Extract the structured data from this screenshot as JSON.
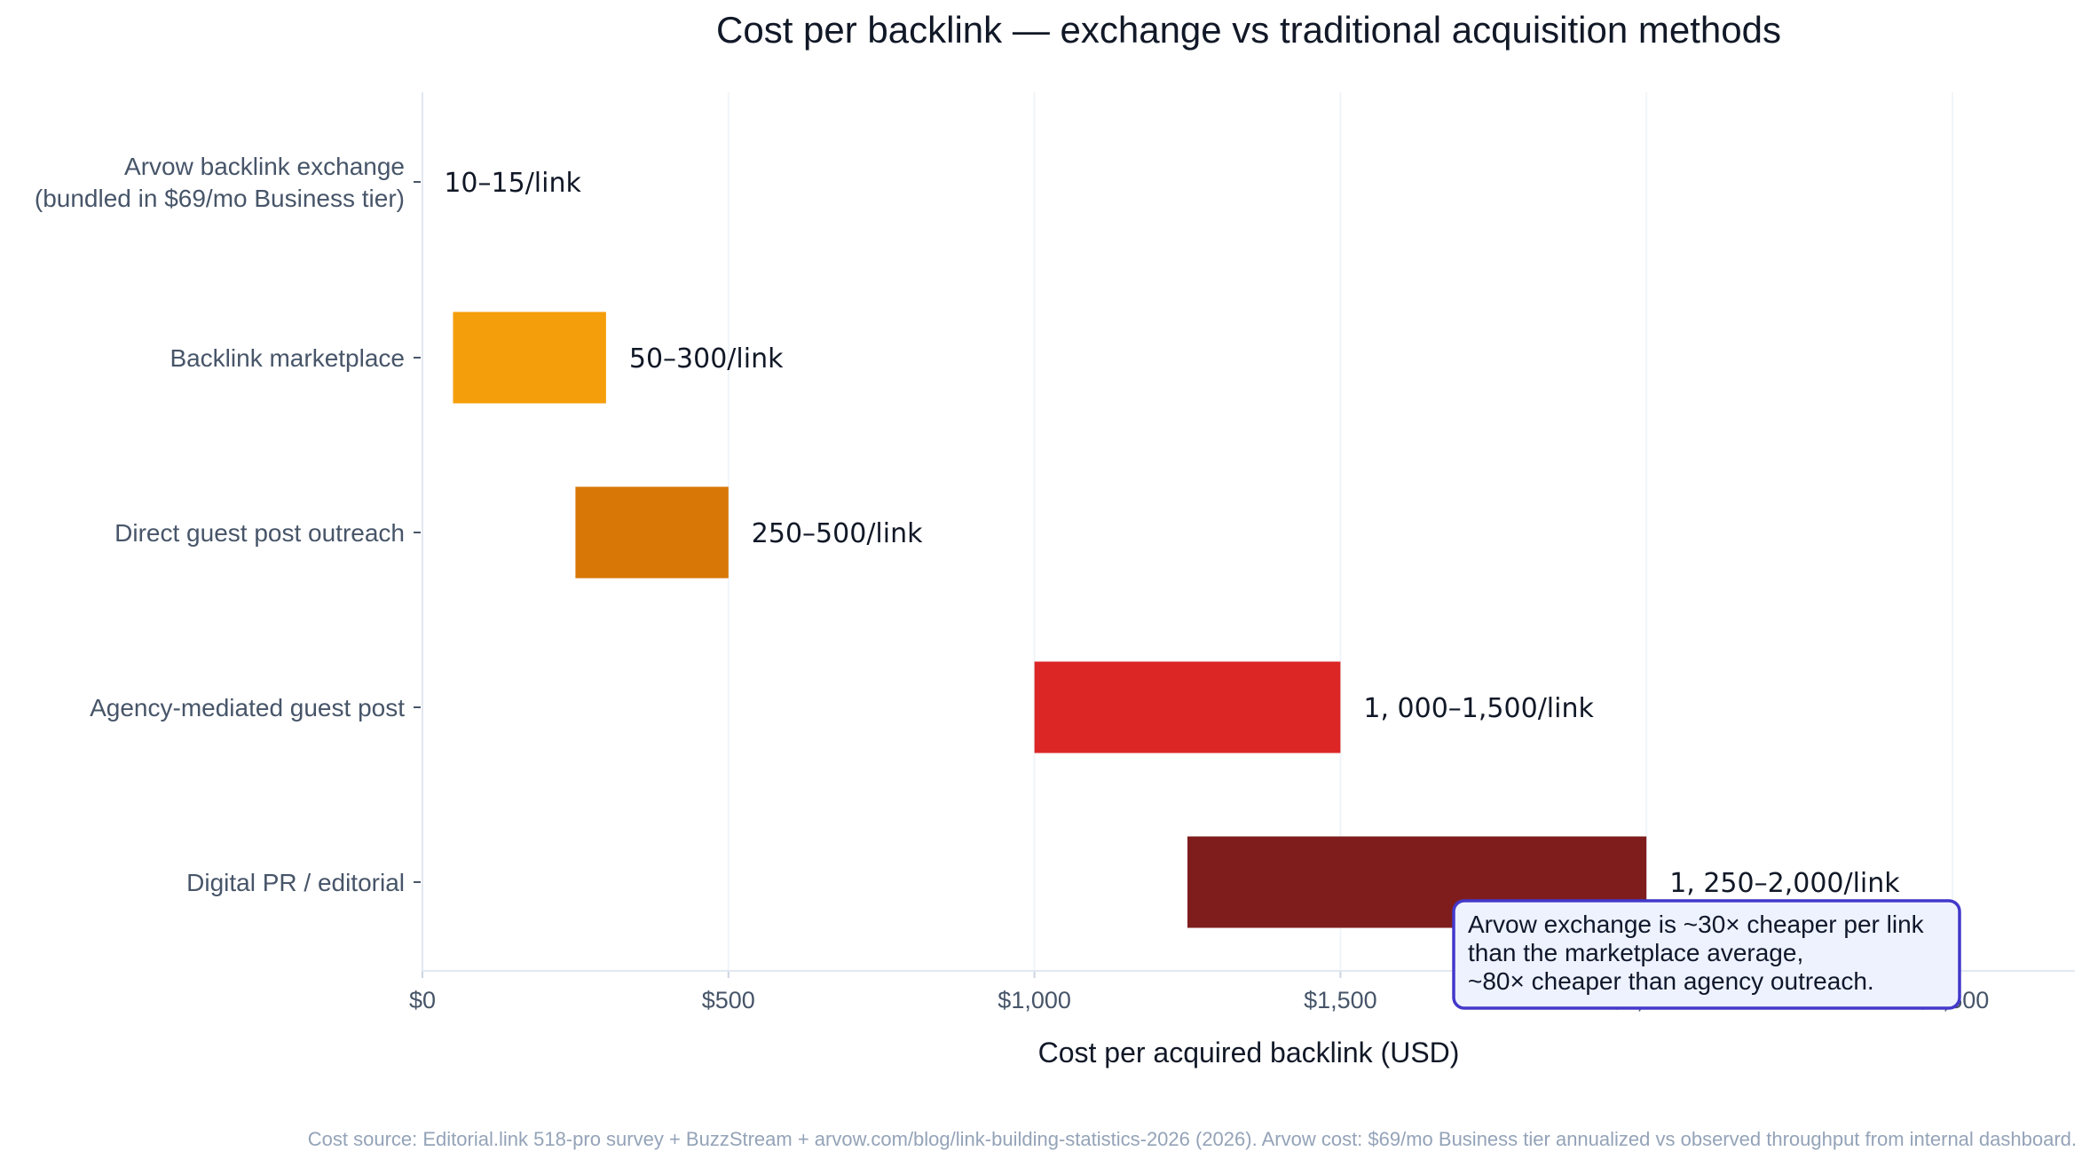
{
  "chart_data": {
    "type": "bar",
    "orientation": "horizontal-range",
    "title": "Cost per backlink — exchange vs traditional acquisition methods",
    "xlabel": "Cost per acquired backlink (USD)",
    "ylabel": "",
    "xlim": [
      0,
      2700
    ],
    "xticks": [
      0,
      500,
      1000,
      1500,
      2000,
      2500
    ],
    "xtick_labels": [
      "$0",
      "$500",
      "$1,000",
      "$1,500",
      "$2,000",
      "$2,500"
    ],
    "grid": "vertical",
    "categories": [
      [
        "Arvow backlink exchange",
        "(bundled in $69/mo Business tier)"
      ],
      [
        "Backlink marketplace"
      ],
      [
        "Direct guest post outreach"
      ],
      [
        "Agency-mediated guest post"
      ],
      [
        "Digital PR / editorial"
      ]
    ],
    "ranges": [
      {
        "low": 10,
        "high": 15,
        "color": "#f59e0b",
        "label": "10–15/link"
      },
      {
        "low": 50,
        "high": 300,
        "color": "#f59e0b",
        "label": "50–300/link"
      },
      {
        "low": 250,
        "high": 500,
        "color": "#d97706",
        "label": "250–500/link"
      },
      {
        "low": 1000,
        "high": 1500,
        "color": "#dc2626",
        "label": "1, 000–1,500/link"
      },
      {
        "low": 1250,
        "high": 2000,
        "color": "#7f1d1d",
        "label": "1, 250–2,000/link"
      }
    ],
    "annotation": {
      "lines": [
        "Arvow exchange is ~30× cheaper per link",
        "than the marketplace average,",
        "~80× cheaper than agency outreach."
      ],
      "border_color": "#4338ca",
      "fill_color": "#eef2ff"
    },
    "source": "Cost source: Editorial.link 518-pro survey + BuzzStream + arvow.com/blog/link-building-statistics-2026 (2026). Arvow cost: $69/mo Business tier annualized vs observed throughput from internal dashboard."
  }
}
